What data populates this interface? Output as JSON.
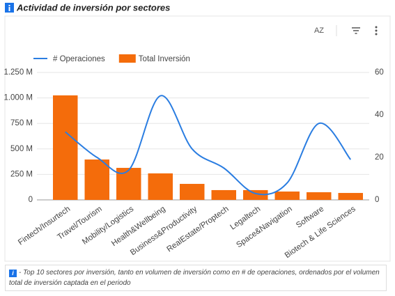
{
  "chart_data": {
    "type": "bar_line",
    "title": "Actividad de inversión por sectores",
    "toolbar_sort": "AZ",
    "categories": [
      "Fintech/Insurtech",
      "Travel/Tourism",
      "Mobility/Logistics",
      "Health&Wellbeing",
      "Business&Productivity",
      "RealEstate/Proptech",
      "Legaltech",
      "Space&Navigation",
      "Software",
      "Biotech & Life Sciences"
    ],
    "series": [
      {
        "name": "Total Inversión",
        "type": "bar",
        "color": "#f46c0b",
        "values": [
          1025,
          396,
          314,
          260,
          157,
          96,
          96,
          82,
          75,
          68
        ]
      },
      {
        "name": "# Operaciones",
        "type": "line",
        "axis": "y2",
        "color": "#2a7de1",
        "values": [
          32,
          20,
          14,
          49,
          24,
          15,
          3,
          8,
          36,
          19
        ]
      }
    ],
    "ylim": [
      0,
      1250
    ],
    "yticks": [
      0,
      {
        "value": 250,
        "label": "250 M"
      },
      {
        "value": 500,
        "label": "500 M"
      },
      {
        "value": 750,
        "label": "750 M"
      },
      {
        "value": 1000,
        "label": "1.000 M"
      },
      {
        "value": 1250,
        "label": "1.250 M"
      }
    ],
    "y2lim": [
      0,
      60
    ],
    "y2ticks": [
      0,
      20,
      40,
      60
    ],
    "grid": true,
    "legend": "top",
    "note": "- Top 10 sectores por inversión, tanto en volumen de inversión como en # de operaciones, ordenados por el volumen total de inversión captada en el periodo"
  }
}
